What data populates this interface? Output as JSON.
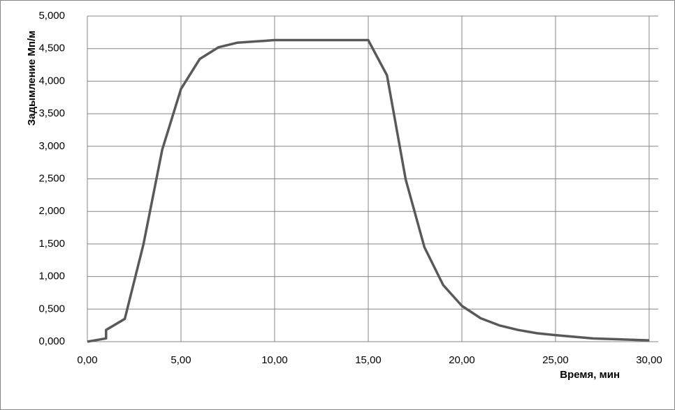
{
  "chart_data": {
    "type": "line",
    "x_label": "Время, мин",
    "y_label": "Задымление Мп/м",
    "x": [
      0,
      1,
      1,
      2,
      3,
      4,
      5,
      6,
      7,
      8,
      9,
      10,
      15,
      16,
      17,
      18,
      19,
      20,
      21,
      22,
      23,
      24,
      25,
      27,
      30
    ],
    "series": [
      {
        "color": "#595959",
        "values": [
          0,
          0.05,
          0.18,
          0.35,
          1.5,
          2.95,
          3.88,
          4.34,
          4.52,
          4.59,
          4.61,
          4.63,
          4.63,
          4.09,
          2.49,
          1.45,
          0.87,
          0.55,
          0.36,
          0.25,
          0.18,
          0.13,
          0.1,
          0.05,
          0.02
        ]
      }
    ],
    "xlim": [
      0,
      30
    ],
    "ylim": [
      0,
      5
    ],
    "xticks": [
      {
        "value": 0,
        "label": "0,00"
      },
      {
        "value": 5,
        "label": "5,00"
      },
      {
        "value": 10,
        "label": "10,00"
      },
      {
        "value": 15,
        "label": "15,00"
      },
      {
        "value": 20,
        "label": "20,00"
      },
      {
        "value": 25,
        "label": "25,00"
      },
      {
        "value": 30,
        "label": "30,00"
      }
    ],
    "yticks": [
      {
        "value": 0,
        "label": "0,000"
      },
      {
        "value": 0.5,
        "label": "0,500"
      },
      {
        "value": 1,
        "label": "1,000"
      },
      {
        "value": 1.5,
        "label": "1,500"
      },
      {
        "value": 2,
        "label": "2,000"
      },
      {
        "value": 2.5,
        "label": "2,500"
      },
      {
        "value": 3,
        "label": "3,000"
      },
      {
        "value": 3.5,
        "label": "3,500"
      },
      {
        "value": 4,
        "label": "4,000"
      },
      {
        "value": 4.5,
        "label": "4,500"
      },
      {
        "value": 5,
        "label": "5,000"
      }
    ],
    "grid": true
  }
}
